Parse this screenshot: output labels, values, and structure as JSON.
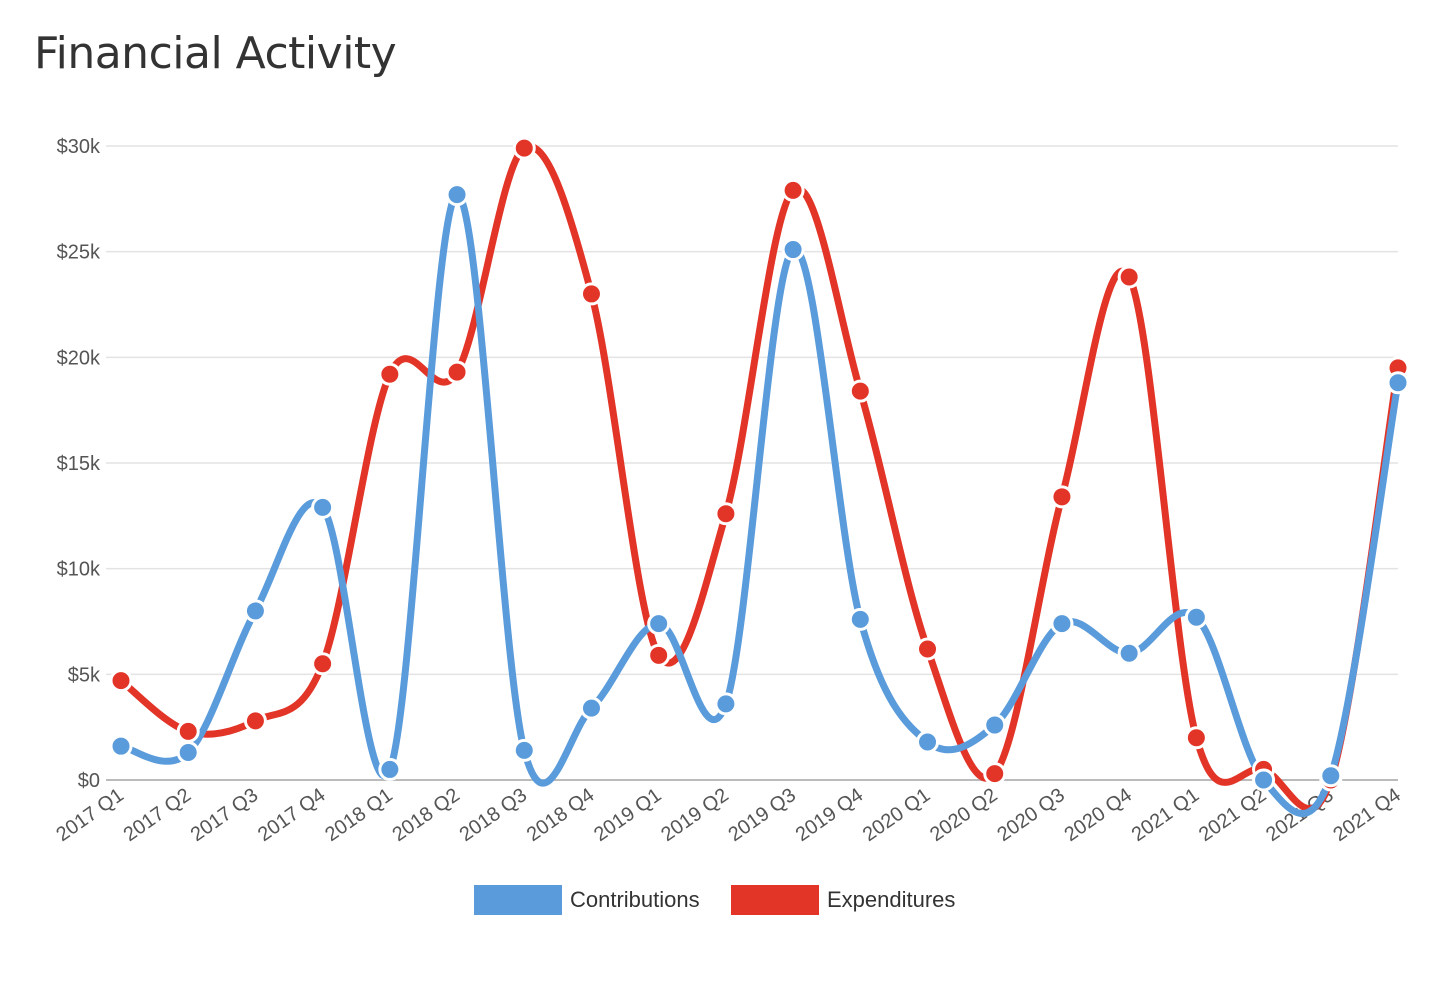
{
  "title": "Financial Activity",
  "chart_data": {
    "type": "line",
    "title": "Financial Activity",
    "categories": [
      "2017 Q1",
      "2017 Q2",
      "2017 Q3",
      "2017 Q4",
      "2018 Q1",
      "2018 Q2",
      "2018 Q3",
      "2018 Q4",
      "2019 Q1",
      "2019 Q2",
      "2019 Q3",
      "2019 Q4",
      "2020 Q1",
      "2020 Q2",
      "2020 Q3",
      "2020 Q4",
      "2021 Q1",
      "2021 Q2",
      "2021 Q3",
      "2021 Q4"
    ],
    "yticks": [
      0,
      5000,
      10000,
      15000,
      20000,
      25000,
      30000
    ],
    "ytick_labels": [
      "$0",
      "$5k",
      "$10k",
      "$15k",
      "$20k",
      "$25k",
      "$30k"
    ],
    "ylim": [
      0,
      30000
    ],
    "grid": true,
    "legend_position": "bottom",
    "series": [
      {
        "name": "Contributions",
        "color": "#5a9bdb",
        "values": [
          1600,
          1300,
          8000,
          12900,
          500,
          27700,
          1400,
          3400,
          7400,
          3600,
          25100,
          7600,
          1800,
          2600,
          7400,
          6000,
          7700,
          0,
          200,
          18800
        ]
      },
      {
        "name": "Expenditures",
        "color": "#e33428",
        "values": [
          4700,
          2300,
          2800,
          5500,
          19200,
          19300,
          29900,
          23000,
          5900,
          12600,
          27900,
          18400,
          6200,
          300,
          13400,
          23800,
          2000,
          500,
          0,
          19500
        ]
      }
    ]
  }
}
